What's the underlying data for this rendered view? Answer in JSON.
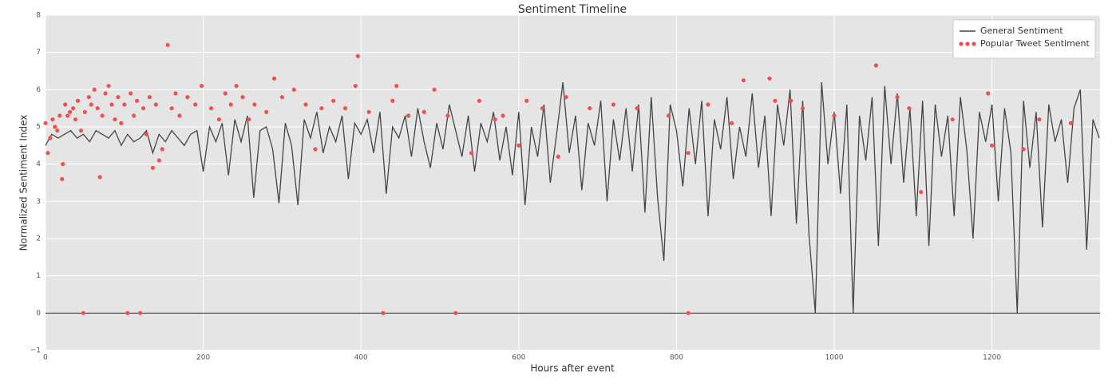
{
  "chart_data": {
    "type": "line",
    "title": "Sentiment Timeline",
    "xlabel": "Hours after event",
    "ylabel": "Normalized Sentiment Index",
    "xlim": [
      0,
      1337
    ],
    "ylim": [
      -1,
      8
    ],
    "xticks": [
      0,
      200,
      400,
      600,
      800,
      1000,
      1200
    ],
    "yticks": [
      {
        "value": -1,
        "label": "−1"
      },
      0,
      1,
      2,
      3,
      4,
      5,
      6,
      7,
      8
    ],
    "grid": true,
    "legend": "upper right",
    "hline": 0,
    "series": [
      {
        "name": "General Sentiment",
        "kind": "line",
        "color": "#444444",
        "x": [
          0,
          8,
          16,
          24,
          32,
          40,
          48,
          56,
          64,
          72,
          80,
          88,
          96,
          104,
          112,
          120,
          128,
          136,
          144,
          152,
          160,
          168,
          176,
          184,
          192,
          200,
          208,
          216,
          224,
          232,
          240,
          248,
          256,
          264,
          272,
          280,
          288,
          296,
          304,
          312,
          320,
          328,
          336,
          344,
          352,
          360,
          368,
          376,
          384,
          392,
          400,
          408,
          416,
          424,
          432,
          440,
          448,
          456,
          464,
          472,
          480,
          488,
          496,
          504,
          512,
          520,
          528,
          536,
          544,
          552,
          560,
          568,
          576,
          584,
          592,
          600,
          608,
          616,
          624,
          632,
          640,
          648,
          656,
          664,
          672,
          680,
          688,
          696,
          704,
          712,
          720,
          728,
          736,
          744,
          752,
          760,
          768,
          776,
          784,
          792,
          800,
          808,
          816,
          824,
          832,
          840,
          848,
          856,
          864,
          872,
          880,
          888,
          896,
          904,
          912,
          920,
          928,
          936,
          944,
          952,
          960,
          968,
          976,
          984,
          992,
          1000,
          1008,
          1016,
          1024,
          1032,
          1040,
          1048,
          1056,
          1064,
          1072,
          1080,
          1088,
          1096,
          1104,
          1112,
          1120,
          1128,
          1136,
          1144,
          1152,
          1160,
          1168,
          1176,
          1184,
          1192,
          1200,
          1208,
          1216,
          1224,
          1232,
          1240,
          1248,
          1256,
          1264,
          1272,
          1280,
          1288,
          1296,
          1304,
          1312,
          1320,
          1328,
          1336
        ],
        "values": [
          4.5,
          4.8,
          4.7,
          4.8,
          4.9,
          4.7,
          4.8,
          4.6,
          4.9,
          4.8,
          4.7,
          4.9,
          4.5,
          4.8,
          4.6,
          4.7,
          4.9,
          4.3,
          4.8,
          4.6,
          4.9,
          4.7,
          4.5,
          4.8,
          4.9,
          3.8,
          5.0,
          4.6,
          5.1,
          3.7,
          5.2,
          4.6,
          5.3,
          3.1,
          4.9,
          5.0,
          4.4,
          2.95,
          5.1,
          4.5,
          2.9,
          5.2,
          4.7,
          5.4,
          4.3,
          5.0,
          4.6,
          5.3,
          3.6,
          5.1,
          4.8,
          5.2,
          4.3,
          5.4,
          3.2,
          5.0,
          4.7,
          5.3,
          4.2,
          5.5,
          4.6,
          3.9,
          5.1,
          4.4,
          5.6,
          4.9,
          4.2,
          5.3,
          3.8,
          5.1,
          4.6,
          5.4,
          4.1,
          5.0,
          3.7,
          5.4,
          2.9,
          5.0,
          4.2,
          5.6,
          3.5,
          4.8,
          6.2,
          4.3,
          5.3,
          3.3,
          5.1,
          4.5,
          5.7,
          3.0,
          5.2,
          4.1,
          5.5,
          3.8,
          5.6,
          2.7,
          5.8,
          3.1,
          1.4,
          5.6,
          4.9,
          3.4,
          5.5,
          4.0,
          5.7,
          2.6,
          5.2,
          4.4,
          5.8,
          3.6,
          5.0,
          4.2,
          5.9,
          3.9,
          5.3,
          2.6,
          5.6,
          4.5,
          6.0,
          2.4,
          5.7,
          2.1,
          0.0,
          6.2,
          4.0,
          5.4,
          3.2,
          5.6,
          0.0,
          5.3,
          4.1,
          5.8,
          1.8,
          6.1,
          4.0,
          5.9,
          3.5,
          5.5,
          2.6,
          5.7,
          1.8,
          5.6,
          4.2,
          5.3,
          2.6,
          5.8,
          4.4,
          2.0,
          5.4,
          4.6,
          5.6,
          3.0,
          5.5,
          4.3,
          0.0,
          5.7,
          3.9,
          5.4,
          2.3,
          5.6,
          4.6,
          5.2,
          3.5,
          5.5,
          6.0,
          1.7,
          5.2,
          4.7
        ]
      },
      {
        "name": "Popular Tweet Sentiment",
        "kind": "scatter",
        "color": "#f0504f",
        "x": [
          0,
          3,
          6,
          9,
          12,
          15,
          18,
          21,
          22,
          25,
          28,
          31,
          35,
          38,
          41,
          45,
          48,
          50,
          55,
          58,
          62,
          66,
          69,
          72,
          76,
          80,
          84,
          88,
          92,
          96,
          100,
          104,
          108,
          112,
          116,
          120,
          124,
          128,
          132,
          136,
          140,
          144,
          148,
          155,
          160,
          165,
          170,
          180,
          190,
          198,
          210,
          220,
          228,
          235,
          242,
          250,
          258,
          265,
          280,
          290,
          300,
          315,
          330,
          342,
          350,
          365,
          380,
          393,
          396,
          410,
          428,
          440,
          445,
          460,
          480,
          493,
          510,
          520,
          540,
          550,
          570,
          580,
          600,
          610,
          630,
          650,
          660,
          690,
          720,
          750,
          790,
          815,
          815,
          840,
          870,
          885,
          918,
          925,
          945,
          960,
          1000,
          1053,
          1080,
          1095,
          1110,
          1150,
          1195,
          1200,
          1240,
          1260,
          1300
        ],
        "values": [
          5.1,
          4.3,
          4.7,
          5.2,
          5.0,
          4.9,
          5.3,
          3.6,
          4.0,
          5.6,
          5.3,
          5.4,
          5.5,
          5.2,
          5.7,
          4.9,
          0,
          5.4,
          5.8,
          5.6,
          6.0,
          5.5,
          3.65,
          5.3,
          5.9,
          6.1,
          5.6,
          5.2,
          5.8,
          5.1,
          5.6,
          0,
          5.9,
          5.3,
          5.7,
          0,
          5.5,
          4.8,
          5.8,
          3.9,
          5.6,
          4.1,
          4.4,
          7.2,
          5.5,
          5.9,
          5.3,
          5.8,
          5.6,
          6.1,
          5.5,
          5.2,
          5.9,
          5.6,
          6.1,
          5.8,
          5.2,
          5.6,
          5.4,
          6.3,
          5.8,
          6.0,
          5.6,
          4.4,
          5.5,
          5.7,
          5.5,
          6.1,
          6.9,
          5.4,
          0,
          5.7,
          6.1,
          5.3,
          5.4,
          6.0,
          5.3,
          0,
          4.3,
          5.7,
          5.2,
          5.3,
          4.5,
          5.7,
          5.5,
          4.2,
          5.8,
          5.5,
          5.6,
          5.5,
          5.3,
          0,
          4.3,
          5.6,
          5.1,
          6.25,
          6.3,
          5.7,
          5.7,
          5.5,
          5.3,
          6.65,
          5.8,
          5.5,
          3.25,
          5.2,
          5.9,
          4.5,
          4.4,
          5.2,
          5.1
        ]
      }
    ]
  }
}
